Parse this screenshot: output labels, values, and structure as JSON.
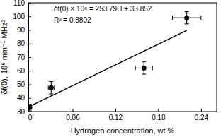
{
  "chart_data": {
    "type": "scatter",
    "x_label": "Hydrogen concentration, wt %",
    "y_label": "δf(0), 10⁶ mm⁻¹ MHz²",
    "annotations": [
      "δf(0) × 10⁶ = 253.79H + 33.852",
      "R² = 0.8892"
    ],
    "xlim": [
      -0.002,
      0.262
    ],
    "xticks": [
      0,
      0.06,
      0.12,
      0.18,
      0.24
    ],
    "ylim": [
      30,
      110
    ],
    "yticks": [
      30,
      40,
      50,
      60,
      70,
      80,
      90,
      100,
      110
    ],
    "grid": false,
    "series": [
      {
        "type": "scatter",
        "marker": "circle",
        "color": "#000000",
        "x": [
          0,
          0.03,
          0.16,
          0.22
        ],
        "values": [
          33,
          47.5,
          62,
          99
        ],
        "y_errors": [
          2.5,
          4.5,
          4.5,
          4.5
        ],
        "x_errors": [
          0,
          0.004,
          0.012,
          0.02
        ]
      },
      {
        "type": "line",
        "line_style": "solid",
        "color": "#000000",
        "x": [
          0,
          0.22
        ],
        "values": [
          33.852,
          89.69
        ]
      }
    ]
  }
}
